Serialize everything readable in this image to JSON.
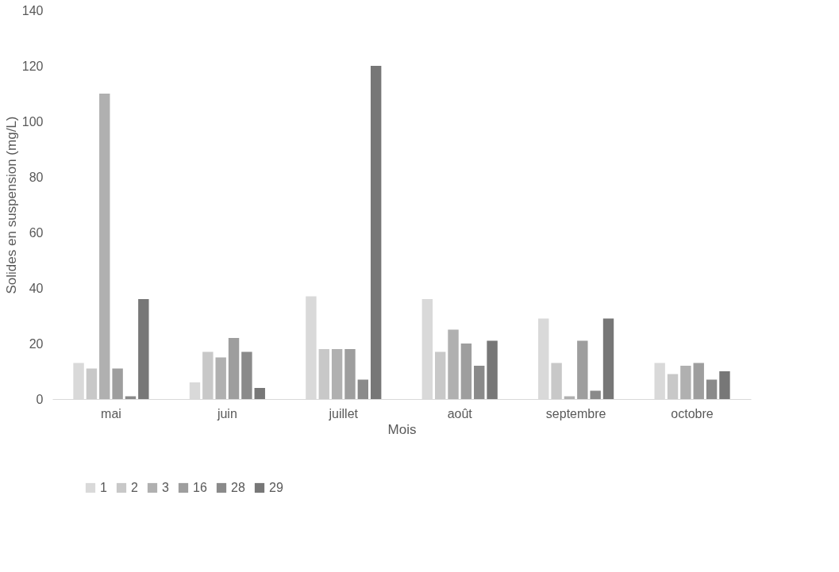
{
  "chart_data": {
    "type": "bar",
    "xlabel": "Mois",
    "ylabel": "Solides en suspension (mg/L)",
    "categories": [
      "mai",
      "juin",
      "juillet",
      "août",
      "septembre",
      "octobre"
    ],
    "series": [
      {
        "name": "1",
        "color": "#d9d9d9",
        "values": [
          13,
          6,
          37,
          36,
          29,
          13
        ]
      },
      {
        "name": "2",
        "color": "#c8c8c8",
        "values": [
          11,
          17,
          18,
          17,
          13,
          9
        ]
      },
      {
        "name": "3",
        "color": "#b0b0b0",
        "values": [
          110,
          15,
          18,
          25,
          1,
          12
        ]
      },
      {
        "name": "16",
        "color": "#9e9e9e",
        "values": [
          11,
          22,
          18,
          20,
          21,
          13
        ]
      },
      {
        "name": "28",
        "color": "#8a8a8a",
        "values": [
          1,
          17,
          7,
          12,
          3,
          7
        ]
      },
      {
        "name": "29",
        "color": "#777777",
        "values": [
          36,
          4,
          120,
          21,
          29,
          10
        ]
      }
    ],
    "ylim": [
      0,
      140
    ],
    "yticks": [
      0,
      20,
      40,
      60,
      80,
      100,
      120,
      140
    ],
    "grid": false,
    "legend": "bottom"
  }
}
